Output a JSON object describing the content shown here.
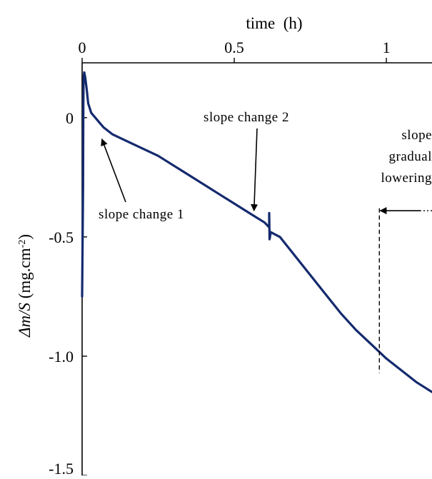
{
  "chart_data": {
    "type": "line",
    "xlabel": "time  (h)",
    "ylabel_main": "Δm/S",
    "ylabel_unit_pre": " (mg.cm",
    "ylabel_unit_sup": "-2",
    "ylabel_unit_post": ")",
    "xlim": [
      0,
      1.15
    ],
    "ylim": [
      -1.5,
      0.23
    ],
    "x_ticks": [
      {
        "value": 0,
        "label": "0"
      },
      {
        "value": 0.5,
        "label": "0.5"
      },
      {
        "value": 1,
        "label": "1"
      }
    ],
    "y_ticks": [
      {
        "value": 0,
        "label": "0"
      },
      {
        "value": -0.5,
        "label": "-0.5"
      },
      {
        "value": -1.0,
        "label": "-1.0"
      },
      {
        "value": -1.5,
        "label": "-1.5"
      }
    ],
    "grid": false,
    "series": [
      {
        "color": "#142a6e",
        "x": [
          0.0,
          0.003,
          0.004,
          0.005,
          0.007,
          0.01,
          0.015,
          0.02,
          0.03,
          0.05,
          0.07,
          0.1,
          0.15,
          0.2,
          0.25,
          0.3,
          0.35,
          0.4,
          0.45,
          0.5,
          0.55,
          0.6,
          0.615,
          0.615,
          0.616,
          0.62,
          0.65,
          0.7,
          0.75,
          0.8,
          0.85,
          0.9,
          0.95,
          1.0,
          1.05,
          1.1,
          1.15
        ],
        "y": [
          -0.75,
          -0.3,
          0.05,
          0.17,
          0.19,
          0.17,
          0.12,
          0.06,
          0.02,
          -0.01,
          -0.04,
          -0.07,
          -0.1,
          -0.13,
          -0.16,
          -0.2,
          -0.24,
          -0.28,
          -0.32,
          -0.36,
          -0.4,
          -0.44,
          -0.46,
          -0.4,
          -0.51,
          -0.48,
          -0.5,
          -0.58,
          -0.66,
          -0.74,
          -0.82,
          -0.89,
          -0.95,
          -1.01,
          -1.06,
          -1.11,
          -1.15
        ]
      }
    ],
    "annotations": [
      {
        "id": "sc1",
        "lines": [
          "slope change 1"
        ],
        "arrow_to": [
          0.065,
          -0.09
        ],
        "anchor": "middle"
      },
      {
        "id": "sc2",
        "lines": [
          "slope change 2"
        ],
        "arrow_to": [
          0.565,
          -0.39
        ],
        "anchor": "middle"
      },
      {
        "id": "sgl",
        "lines": [
          "slope",
          "gradual",
          "lowering"
        ],
        "anchor": "end"
      }
    ],
    "vline": {
      "x": 0.977,
      "y_from": -0.38,
      "y_to": -1.07,
      "dash": true
    },
    "right_arrow": {
      "y": -0.39,
      "x_head": 0.975
    }
  }
}
